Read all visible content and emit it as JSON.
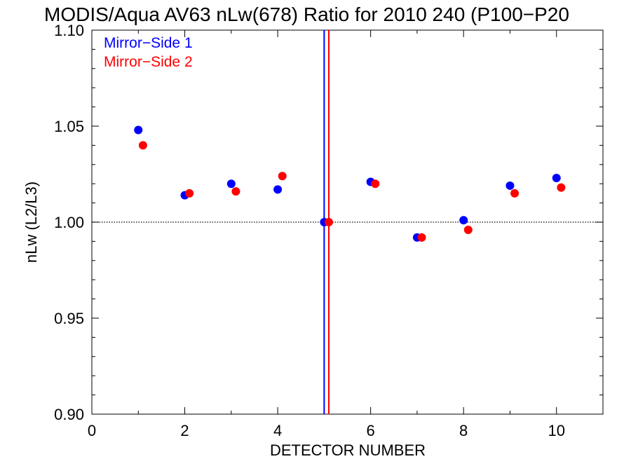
{
  "chart_data": {
    "type": "scatter",
    "title": "MODIS/Aqua AV63 nLw(678) Ratio for 2010 240 (P100−P20",
    "xlabel": "DETECTOR NUMBER",
    "ylabel": "nLw (L2/L3)",
    "xlim": [
      0,
      11
    ],
    "ylim": [
      0.9,
      1.1
    ],
    "x_ticks": [
      0,
      2,
      4,
      6,
      8,
      10
    ],
    "x_tick_labels": [
      "0",
      "2",
      "4",
      "6",
      "8",
      "10"
    ],
    "y_ticks": [
      0.9,
      0.95,
      1.0,
      1.05,
      1.1
    ],
    "y_tick_labels": [
      "0.90",
      "0.95",
      "1.00",
      "1.05",
      "1.10"
    ],
    "grid": false,
    "legend_position": "top-left",
    "reference_line": {
      "y": 1.0,
      "style": "dotted",
      "color": "#000000"
    },
    "vertical_lines": [
      {
        "x": 5.0,
        "color": "#0000ff"
      },
      {
        "x": 5.1,
        "color": "#ff0000"
      }
    ],
    "series": [
      {
        "name": "Mirror−Side 1",
        "color": "#0000ff",
        "x": [
          1,
          2,
          3,
          4,
          5,
          6,
          7,
          8,
          9,
          10
        ],
        "y": [
          1.048,
          1.014,
          1.02,
          1.017,
          1.0,
          1.021,
          0.992,
          1.001,
          1.019,
          1.023
        ]
      },
      {
        "name": "Mirror−Side 2",
        "color": "#ff0000",
        "x": [
          1.1,
          2.1,
          3.1,
          4.1,
          5.1,
          6.1,
          7.1,
          8.1,
          9.1,
          10.1
        ],
        "y": [
          1.04,
          1.015,
          1.016,
          1.024,
          1.0,
          1.02,
          0.992,
          0.996,
          1.015,
          1.018
        ]
      }
    ]
  }
}
